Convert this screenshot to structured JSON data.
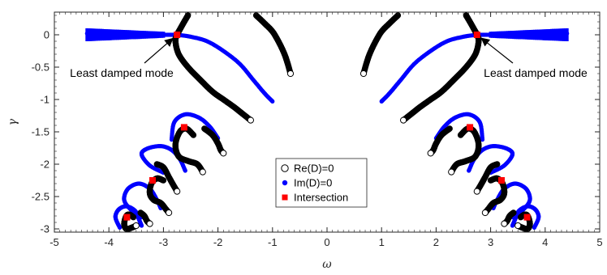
{
  "chart_data": {
    "type": "scatter",
    "title": "",
    "xlabel": "ω",
    "ylabel": "γ",
    "xlim": [
      -5,
      5
    ],
    "ylim": [
      -3.05,
      0.35
    ],
    "x_ticks": [
      "-5",
      "-4",
      "-3",
      "-2",
      "-1",
      "0",
      "1",
      "2",
      "3",
      "4",
      "5"
    ],
    "y_ticks": [
      "0",
      "-0.5",
      "-1",
      "-1.5",
      "-2",
      "-2.5",
      "-3"
    ],
    "grid": false,
    "legend_position": "bottom-center",
    "legend": [
      {
        "label": "Re(D)=0",
        "marker": "open-circle",
        "color": "#000000"
      },
      {
        "label": "Im(D)=0",
        "marker": "filled-circle",
        "color": "#0000ff"
      },
      {
        "label": "Intersection",
        "marker": "filled-square",
        "color": "#ff0000"
      }
    ],
    "annotations": [
      {
        "text": "Least damped mode",
        "points_to": [
          -2.75,
          0.0
        ]
      },
      {
        "text": "Least damped mode",
        "points_to": [
          2.75,
          0.0
        ]
      }
    ],
    "series": [
      {
        "name": "Re(D)=0",
        "color": "#000000",
        "curves": [
          [
            [
              -2.55,
              0.3
            ],
            [
              -2.62,
              0.2
            ],
            [
              -2.7,
              0.08
            ],
            [
              -2.75,
              0.0
            ],
            [
              -2.78,
              -0.1
            ],
            [
              -2.72,
              -0.3
            ],
            [
              -2.55,
              -0.5
            ],
            [
              -2.32,
              -0.7
            ],
            [
              -2.1,
              -0.88
            ],
            [
              -1.9,
              -1.0
            ],
            [
              -1.7,
              -1.12
            ],
            [
              -1.55,
              -1.22
            ],
            [
              -1.4,
              -1.32
            ]
          ],
          [
            [
              -1.3,
              0.3
            ],
            [
              -1.15,
              0.18
            ],
            [
              -1.0,
              0.05
            ],
            [
              -0.88,
              -0.12
            ],
            [
              -0.78,
              -0.3
            ],
            [
              -0.72,
              -0.45
            ],
            [
              -0.67,
              -0.6
            ]
          ],
          [
            [
              -2.45,
              -1.55
            ],
            [
              -2.58,
              -1.45
            ],
            [
              -2.7,
              -1.5
            ],
            [
              -2.78,
              -1.7
            ],
            [
              -2.72,
              -1.88
            ],
            [
              -2.55,
              -1.95
            ],
            [
              -2.38,
              -2.0
            ],
            [
              -2.28,
              -2.12
            ]
          ],
          [
            [
              -2.25,
              -1.45
            ],
            [
              -2.1,
              -1.55
            ],
            [
              -2.0,
              -1.68
            ],
            [
              -1.95,
              -1.78
            ],
            [
              -1.9,
              -1.83
            ]
          ],
          [
            [
              -3.0,
              -2.25
            ],
            [
              -3.12,
              -2.22
            ],
            [
              -3.22,
              -2.3
            ],
            [
              -3.25,
              -2.45
            ],
            [
              -3.18,
              -2.55
            ],
            [
              -3.05,
              -2.6
            ],
            [
              -2.95,
              -2.7
            ],
            [
              -2.9,
              -2.75
            ]
          ],
          [
            [
              -3.12,
              -2.0
            ],
            [
              -3.0,
              -2.05
            ],
            [
              -2.9,
              -2.2
            ],
            [
              -2.82,
              -2.32
            ],
            [
              -2.75,
              -2.42
            ]
          ],
          [
            [
              -3.55,
              -2.82
            ],
            [
              -3.62,
              -2.78
            ],
            [
              -3.68,
              -2.8
            ],
            [
              -3.72,
              -2.92
            ],
            [
              -3.68,
              -3.0
            ],
            [
              -3.58,
              -2.98
            ],
            [
              -3.5,
              -2.95
            ]
          ],
          [
            [
              -3.42,
              -2.75
            ],
            [
              -3.35,
              -2.8
            ],
            [
              -3.3,
              -2.88
            ],
            [
              -3.25,
              -2.92
            ]
          ],
          [
            [
              2.55,
              0.3
            ],
            [
              2.62,
              0.2
            ],
            [
              2.7,
              0.08
            ],
            [
              2.75,
              0.0
            ],
            [
              2.78,
              -0.1
            ],
            [
              2.72,
              -0.3
            ],
            [
              2.55,
              -0.5
            ],
            [
              2.32,
              -0.7
            ],
            [
              2.1,
              -0.88
            ],
            [
              1.9,
              -1.0
            ],
            [
              1.7,
              -1.12
            ],
            [
              1.55,
              -1.22
            ],
            [
              1.4,
              -1.32
            ]
          ],
          [
            [
              1.3,
              0.3
            ],
            [
              1.15,
              0.18
            ],
            [
              1.0,
              0.05
            ],
            [
              0.88,
              -0.12
            ],
            [
              0.78,
              -0.3
            ],
            [
              0.72,
              -0.45
            ],
            [
              0.67,
              -0.6
            ]
          ],
          [
            [
              2.45,
              -1.55
            ],
            [
              2.58,
              -1.45
            ],
            [
              2.7,
              -1.5
            ],
            [
              2.78,
              -1.7
            ],
            [
              2.72,
              -1.88
            ],
            [
              2.55,
              -1.95
            ],
            [
              2.38,
              -2.0
            ],
            [
              2.28,
              -2.12
            ]
          ],
          [
            [
              2.25,
              -1.45
            ],
            [
              2.1,
              -1.55
            ],
            [
              2.0,
              -1.68
            ],
            [
              1.95,
              -1.78
            ],
            [
              1.9,
              -1.83
            ]
          ],
          [
            [
              3.0,
              -2.25
            ],
            [
              3.12,
              -2.22
            ],
            [
              3.22,
              -2.3
            ],
            [
              3.25,
              -2.45
            ],
            [
              3.18,
              -2.55
            ],
            [
              3.05,
              -2.6
            ],
            [
              2.95,
              -2.7
            ],
            [
              2.9,
              -2.75
            ]
          ],
          [
            [
              3.12,
              -2.0
            ],
            [
              3.0,
              -2.05
            ],
            [
              2.9,
              -2.2
            ],
            [
              2.82,
              -2.32
            ],
            [
              2.75,
              -2.42
            ]
          ],
          [
            [
              3.55,
              -2.82
            ],
            [
              3.62,
              -2.78
            ],
            [
              3.68,
              -2.8
            ],
            [
              3.72,
              -2.92
            ],
            [
              3.68,
              -3.0
            ],
            [
              3.58,
              -2.98
            ],
            [
              3.5,
              -2.95
            ]
          ],
          [
            [
              3.42,
              -2.75
            ],
            [
              3.35,
              -2.8
            ],
            [
              3.3,
              -2.88
            ],
            [
              3.25,
              -2.92
            ]
          ]
        ]
      },
      {
        "name": "Im(D)=0",
        "color": "#0000ff",
        "curves": [
          [
            [
              -4.4,
              0.02
            ],
            [
              -4.0,
              0.01
            ],
            [
              -3.5,
              0.005
            ],
            [
              -3.0,
              0.0
            ],
            [
              -2.75,
              0.0
            ]
          ],
          [
            [
              -2.75,
              0.0
            ],
            [
              -2.5,
              -0.03
            ],
            [
              -2.2,
              -0.1
            ],
            [
              -1.9,
              -0.25
            ],
            [
              -1.6,
              -0.45
            ],
            [
              -1.35,
              -0.7
            ],
            [
              -1.15,
              -0.9
            ],
            [
              -1.0,
              -1.03
            ]
          ],
          [
            [
              -2.85,
              -1.62
            ],
            [
              -2.8,
              -1.35
            ],
            [
              -2.6,
              -1.23
            ],
            [
              -2.35,
              -1.28
            ],
            [
              -2.15,
              -1.42
            ],
            [
              -2.0,
              -1.6
            ]
          ],
          [
            [
              -3.0,
              -2.13
            ],
            [
              -3.25,
              -2.02
            ],
            [
              -3.4,
              -1.85
            ],
            [
              -3.3,
              -1.76
            ],
            [
              -3.05,
              -1.72
            ],
            [
              -2.85,
              -1.78
            ],
            [
              -2.7,
              -1.92
            ],
            [
              -2.6,
              -2.1
            ]
          ],
          [
            [
              -3.4,
              -2.82
            ],
            [
              -3.6,
              -2.7
            ],
            [
              -3.72,
              -2.55
            ],
            [
              -3.65,
              -2.38
            ],
            [
              -3.45,
              -2.3
            ],
            [
              -3.25,
              -2.38
            ],
            [
              -3.12,
              -2.55
            ],
            [
              -3.05,
              -2.68
            ]
          ],
          [
            [
              -3.8,
              -2.98
            ],
            [
              -3.88,
              -2.82
            ],
            [
              -3.82,
              -2.7
            ],
            [
              -3.68,
              -2.65
            ],
            [
              -3.52,
              -2.72
            ],
            [
              -3.45,
              -2.85
            ],
            [
              -3.4,
              -2.95
            ]
          ],
          [
            [
              4.4,
              0.02
            ],
            [
              4.0,
              0.01
            ],
            [
              3.5,
              0.005
            ],
            [
              3.0,
              0.0
            ],
            [
              2.75,
              0.0
            ]
          ],
          [
            [
              2.75,
              0.0
            ],
            [
              2.5,
              -0.03
            ],
            [
              2.2,
              -0.1
            ],
            [
              1.9,
              -0.25
            ],
            [
              1.6,
              -0.45
            ],
            [
              1.35,
              -0.7
            ],
            [
              1.15,
              -0.9
            ],
            [
              1.0,
              -1.03
            ]
          ],
          [
            [
              2.85,
              -1.62
            ],
            [
              2.8,
              -1.35
            ],
            [
              2.6,
              -1.23
            ],
            [
              2.35,
              -1.28
            ],
            [
              2.15,
              -1.42
            ],
            [
              2.0,
              -1.6
            ]
          ],
          [
            [
              3.0,
              -2.13
            ],
            [
              3.25,
              -2.02
            ],
            [
              3.4,
              -1.85
            ],
            [
              3.3,
              -1.76
            ],
            [
              3.05,
              -1.72
            ],
            [
              2.85,
              -1.78
            ],
            [
              2.7,
              -1.92
            ],
            [
              2.6,
              -2.1
            ]
          ],
          [
            [
              3.4,
              -2.82
            ],
            [
              3.6,
              -2.7
            ],
            [
              3.72,
              -2.55
            ],
            [
              3.65,
              -2.38
            ],
            [
              3.45,
              -2.3
            ],
            [
              3.25,
              -2.38
            ],
            [
              3.12,
              -2.55
            ],
            [
              3.05,
              -2.68
            ]
          ],
          [
            [
              3.8,
              -2.98
            ],
            [
              3.88,
              -2.82
            ],
            [
              3.82,
              -2.7
            ],
            [
              3.68,
              -2.65
            ],
            [
              3.52,
              -2.72
            ],
            [
              3.45,
              -2.85
            ],
            [
              3.4,
              -2.95
            ]
          ]
        ]
      },
      {
        "name": "Intersection",
        "color": "#ff0000",
        "points": [
          [
            -2.75,
            0.0
          ],
          [
            -2.62,
            -1.43
          ],
          [
            -3.2,
            -2.25
          ],
          [
            -3.67,
            -2.82
          ],
          [
            2.75,
            0.0
          ],
          [
            2.62,
            -1.43
          ],
          [
            3.2,
            -2.25
          ],
          [
            3.67,
            -2.82
          ]
        ]
      }
    ]
  }
}
